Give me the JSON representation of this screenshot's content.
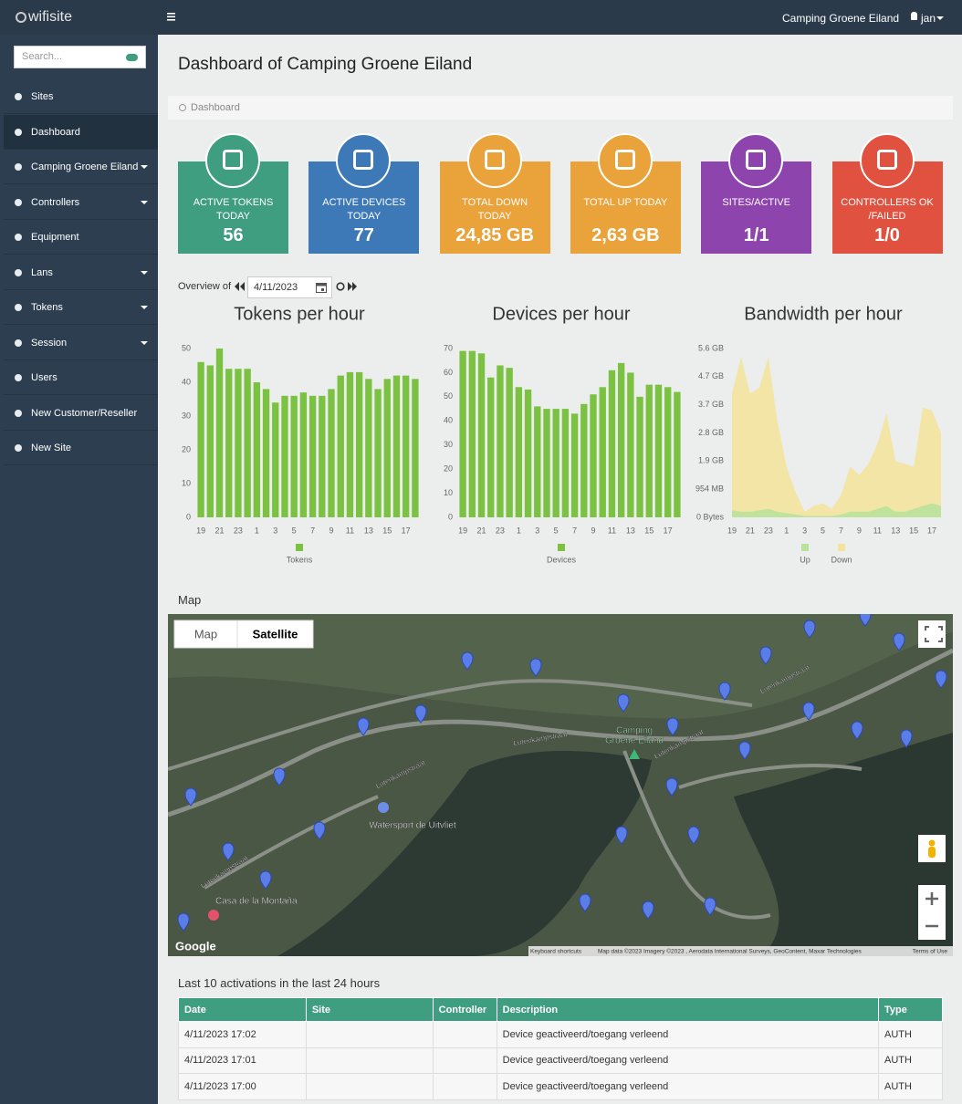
{
  "header": {
    "logo": "wifisite",
    "site": "Camping Groene Eiland",
    "user": "jan"
  },
  "sidebar": {
    "search_placeholder": "Search...",
    "items": [
      {
        "label": "Sites",
        "submenu": false
      },
      {
        "label": "Dashboard",
        "submenu": false
      },
      {
        "label": "Camping Groene Eiland",
        "submenu": true
      },
      {
        "label": "Controllers",
        "submenu": true
      },
      {
        "label": "Equipment",
        "submenu": false
      },
      {
        "label": "Lans",
        "submenu": true
      },
      {
        "label": "Tokens",
        "submenu": true
      },
      {
        "label": "Session",
        "submenu": true
      },
      {
        "label": "Users",
        "submenu": false
      },
      {
        "label": "New Customer/Reseller",
        "submenu": false
      },
      {
        "label": "New Site",
        "submenu": false
      }
    ],
    "active": 1
  },
  "title": "Dashboard of Camping Groene Eiland",
  "breadcrumb": "Dashboard",
  "cards": [
    {
      "label": "ACTIVE TOKENS TODAY",
      "value": 56,
      "color": "#3f9e80"
    },
    {
      "label": "ACTIVE DEVICES TODAY",
      "value": 77,
      "color": "#3d79b6"
    },
    {
      "label": "TOTAL DOWN TODAY",
      "value": "24,85 GB",
      "color": "#eaa23a"
    },
    {
      "label": "TOTAL UP TODAY",
      "value": "2,63 GB",
      "color": "#eaa23a"
    },
    {
      "label": "SITES/ACTIVE",
      "value": "1/1",
      "color": "#8e44ad"
    },
    {
      "label": "CONTROLLERS OK /FAILED",
      "value": "1/0",
      "color": "#e0513f"
    }
  ],
  "overview": {
    "label": "Overview of",
    "date": "4/11/2023"
  },
  "chart_data": [
    {
      "type": "bar",
      "title": "Tokens per hour",
      "categories": [
        19,
        null,
        21,
        null,
        23,
        null,
        1,
        null,
        3,
        null,
        5,
        null,
        7,
        null,
        9,
        null,
        11,
        null,
        13,
        null,
        15,
        null,
        17,
        null
      ],
      "values": [
        46,
        45,
        50,
        44,
        44,
        44,
        40,
        38,
        34,
        36,
        36,
        37,
        36,
        36,
        38,
        42,
        43,
        43,
        41,
        38,
        41,
        42,
        42,
        41
      ],
      "name": "Tokens",
      "color": "#7cc242",
      "ylim": [
        0,
        50
      ],
      "yticks": [
        0,
        10,
        20,
        30,
        40,
        50
      ],
      "grid": false
    },
    {
      "type": "bar",
      "title": "Devices per hour",
      "categories": [
        19,
        null,
        21,
        null,
        23,
        null,
        1,
        null,
        3,
        null,
        5,
        null,
        7,
        null,
        9,
        null,
        11,
        null,
        13,
        null,
        15,
        null,
        17,
        null
      ],
      "values": [
        69,
        69,
        68,
        58,
        63,
        62,
        54,
        53,
        46,
        45,
        45,
        45,
        43,
        47,
        51,
        54,
        61,
        64,
        60,
        50,
        55,
        55,
        54,
        52
      ],
      "name": "Devices",
      "color": "#7cc242",
      "ylim": [
        0,
        70
      ],
      "yticks": [
        0,
        10,
        20,
        30,
        40,
        50,
        60,
        70
      ],
      "grid": false
    },
    {
      "type": "area",
      "title": "Bandwidth per hour",
      "categories": [
        19,
        null,
        21,
        null,
        23,
        null,
        1,
        null,
        3,
        null,
        5,
        null,
        7,
        null,
        9,
        null,
        11,
        null,
        13,
        null,
        15,
        null,
        17,
        null
      ],
      "series": [
        {
          "name": "Up",
          "color": "#b9e29b",
          "values": [
            250000000,
            200000000,
            200000000,
            250000000,
            300000000,
            200000000,
            150000000,
            100000000,
            50000000,
            50000000,
            50000000,
            50000000,
            100000000,
            200000000,
            200000000,
            200000000,
            300000000,
            400000000,
            200000000,
            200000000,
            300000000,
            400000000,
            500000000,
            400000000
          ]
        },
        {
          "name": "Down",
          "color": "#f4e39c",
          "values": [
            4400000000,
            5700000000,
            4400000000,
            4600000000,
            5700000000,
            3400000000,
            1800000000,
            900000000,
            200000000,
            400000000,
            500000000,
            300000000,
            800000000,
            1800000000,
            1500000000,
            1900000000,
            2600000000,
            3700000000,
            2000000000,
            1900000000,
            1800000000,
            3900000000,
            3800000000,
            3000000000
          ]
        }
      ],
      "ylim": [
        0,
        6000000000
      ],
      "yticks": [
        {
          "value": 0,
          "label": "0 Bytes"
        },
        {
          "value": 1000000000,
          "label": "954 MB"
        },
        {
          "value": 2000000000,
          "label": "1.9 GB"
        },
        {
          "value": 3000000000,
          "label": "2.8 GB"
        },
        {
          "value": 4000000000,
          "label": "3.7 GB"
        },
        {
          "value": 5000000000,
          "label": "4.7 GB"
        },
        {
          "value": 6000000000,
          "label": "5.6 GB"
        }
      ],
      "grid": false
    }
  ],
  "map": {
    "title": "Map",
    "buttons": [
      "Map",
      "Satellite"
    ],
    "selected": 1,
    "labels": [
      "Lutenkampstraat",
      "Lutenkampstraat",
      "Lutenkampstraat",
      "Lutenkampstraat",
      "Lutenkampstraat",
      "Camping",
      "Groene Eiland",
      "Watersport de Uitvliet",
      "Casa de la Montaña"
    ],
    "logo": "Google",
    "attribution": [
      "Keyboard shortcuts",
      "Map data ©2023 Imagery ©2023 , Aerodata International Surveys, GeoContent, Maxar Technologies",
      "Terms of Use"
    ]
  },
  "table": {
    "title": "Last 10 activations in the last 24 hours",
    "columns": [
      "Date",
      "Site",
      "Controller",
      "Description",
      "Type"
    ],
    "rows": [
      [
        "4/11/2023 17:02",
        "",
        "",
        "Device geactiveerd/toegang verleend",
        "AUTH"
      ],
      [
        "4/11/2023 17:01",
        "",
        "",
        "Device geactiveerd/toegang verleend",
        "AUTH"
      ],
      [
        "4/11/2023 17:00",
        "",
        "",
        "Device geactiveerd/toegang verleend",
        "AUTH"
      ]
    ]
  }
}
